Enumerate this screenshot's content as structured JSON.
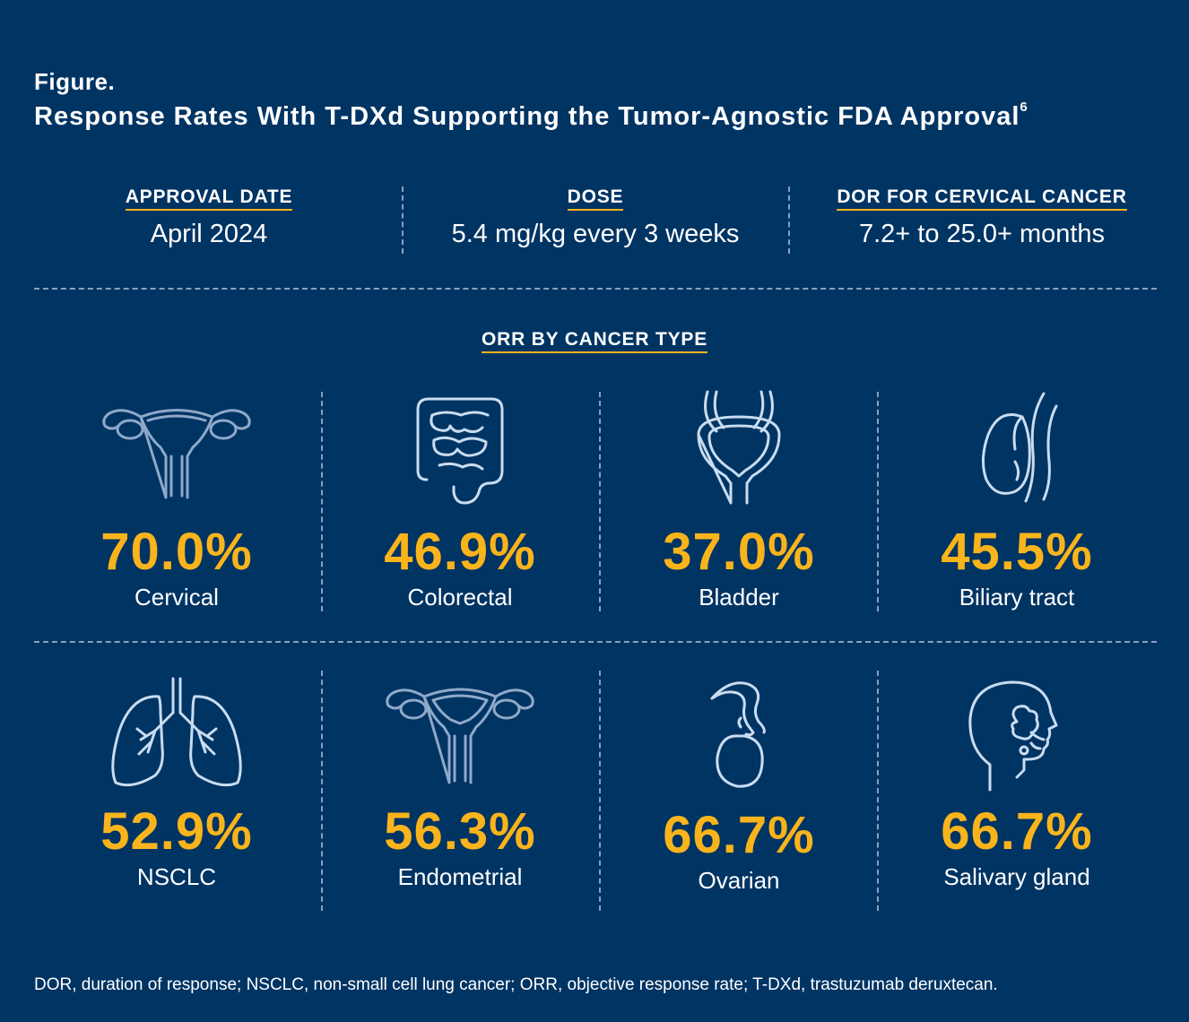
{
  "figure": {
    "label": "Figure.",
    "title": "Response Rates With T-DXd Supporting the Tumor-Agnostic FDA Approval",
    "title_ref": "6"
  },
  "stats": [
    {
      "label": "APPROVAL DATE",
      "value": "April 2024"
    },
    {
      "label": "DOSE",
      "value": "5.4 mg/kg every 3 weeks"
    },
    {
      "label": "DOR FOR CERVICAL CANCER",
      "value": "7.2+ to 25.0+ months"
    }
  ],
  "section_heading": "ORR BY CANCER TYPE",
  "cancers": [
    {
      "name": "Cervical",
      "orr": "70.0%",
      "icon": "uterus-icon"
    },
    {
      "name": "Colorectal",
      "orr": "46.9%",
      "icon": "intestine-icon"
    },
    {
      "name": "Bladder",
      "orr": "37.0%",
      "icon": "bladder-icon"
    },
    {
      "name": "Biliary tract",
      "orr": "45.5%",
      "icon": "gallbladder-icon"
    },
    {
      "name": "NSCLC",
      "orr": "52.9%",
      "icon": "lungs-icon"
    },
    {
      "name": "Endometrial",
      "orr": "56.3%",
      "icon": "uterus-icon"
    },
    {
      "name": "Ovarian",
      "orr": "66.7%",
      "icon": "ovary-icon"
    },
    {
      "name": "Salivary gland",
      "orr": "66.7%",
      "icon": "head-profile-icon"
    }
  ],
  "footnote": "DOR, duration of response; NSCLC, non-small cell lung cancer; ORR, objective response rate; T-DXd, trastuzumab deruxtecan.",
  "colors": {
    "background": "#003463",
    "accent": "#f9b41b",
    "icon_stroke": "#c9dcf0"
  }
}
